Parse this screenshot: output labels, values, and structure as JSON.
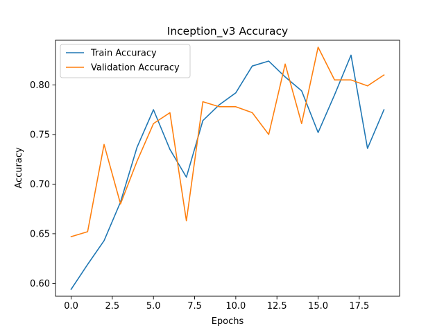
{
  "chart_data": {
    "type": "line",
    "title": "Inception_v3 Accuracy",
    "xlabel": "Epochs",
    "ylabel": "Accuracy",
    "xlim": [
      -0.95,
      19.95
    ],
    "ylim": [
      0.587,
      0.845
    ],
    "xticks": [
      0,
      2.5,
      5,
      7.5,
      10,
      12.5,
      15,
      17.5
    ],
    "xtick_labels": [
      "0.0",
      "2.5",
      "5.0",
      "7.5",
      "10.0",
      "12.5",
      "15.0",
      "17.5"
    ],
    "yticks": [
      0.6,
      0.65,
      0.7,
      0.75,
      0.8
    ],
    "ytick_labels": [
      "0.60",
      "0.65",
      "0.70",
      "0.75",
      "0.80"
    ],
    "grid": false,
    "legend_position": "upper-left",
    "x": [
      0,
      1,
      2,
      3,
      4,
      5,
      6,
      7,
      8,
      9,
      10,
      11,
      12,
      13,
      14,
      15,
      16,
      17,
      18,
      19
    ],
    "series": [
      {
        "name": "Train Accuracy",
        "color": "#1f77b4",
        "values": [
          0.594,
          0.619,
          0.643,
          0.682,
          0.737,
          0.775,
          0.735,
          0.707,
          0.764,
          0.78,
          0.792,
          0.819,
          0.824,
          0.808,
          0.794,
          0.752,
          0.79,
          0.83,
          0.736,
          0.775
        ]
      },
      {
        "name": "Validation Accuracy",
        "color": "#ff7f0e",
        "values": [
          0.647,
          0.652,
          0.74,
          0.68,
          0.723,
          0.761,
          0.772,
          0.663,
          0.783,
          0.778,
          0.778,
          0.772,
          0.75,
          0.821,
          0.761,
          0.838,
          0.805,
          0.805,
          0.799,
          0.81
        ]
      }
    ]
  }
}
